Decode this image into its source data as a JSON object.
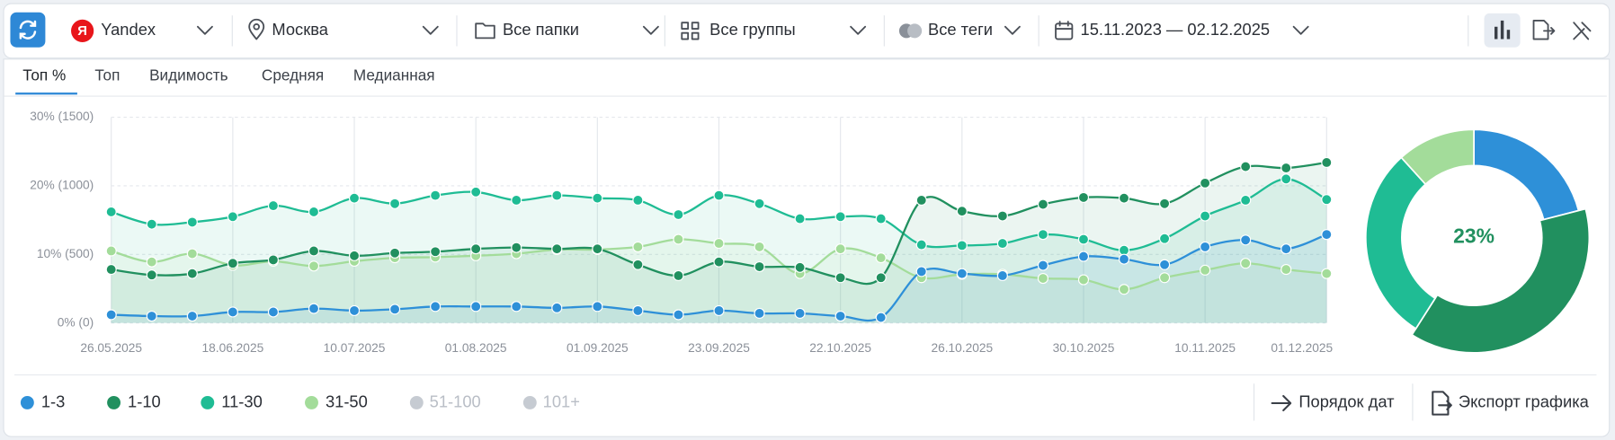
{
  "toolbar": {
    "engine_icon": "Я",
    "engine": "Yandex",
    "region": "Москва",
    "folders": "Все папки",
    "groups": "Все группы",
    "tags": "Все теги",
    "dates": "15.11.2023 — 02.12.2025"
  },
  "tabs": [
    "Топ %",
    "Топ",
    "Видимость",
    "Средняя",
    "Медианная"
  ],
  "legend_inactive": [
    "51-100",
    "101+"
  ],
  "buttons": [
    "Порядок дат",
    "Экспорт графика"
  ],
  "chart_data": [
    {
      "type": "line",
      "categories": [
        "26.05.2025",
        null,
        null,
        "18.06.2025",
        null,
        null,
        "10.07.2025",
        null,
        null,
        "01.08.2025",
        null,
        null,
        "01.09.2025",
        null,
        null,
        "23.09.2025",
        null,
        null,
        "22.10.2025",
        null,
        null,
        "26.10.2025",
        null,
        null,
        "30.10.2025",
        null,
        null,
        "10.11.2025",
        null,
        null,
        "01.12.2025"
      ],
      "ylim": [
        0,
        30
      ],
      "yticks": [
        {
          "value": 0,
          "label": "0% (0)"
        },
        {
          "value": 10,
          "label": "10% (500)"
        },
        {
          "value": 20,
          "label": "20% (1000)"
        },
        {
          "value": 30,
          "label": "30% (1500)"
        }
      ],
      "grid": true,
      "series": [
        {
          "name": "1-3",
          "color": "#2e90d8",
          "values": [
            1.2,
            1.0,
            1.0,
            1.6,
            1.6,
            2.1,
            1.8,
            2.0,
            2.4,
            2.4,
            2.4,
            2.2,
            2.4,
            1.8,
            1.2,
            1.8,
            1.4,
            1.4,
            1.0,
            0.8,
            7.5,
            7.2,
            6.9,
            8.4,
            9.7,
            9.3,
            8.5,
            11.1,
            12.1,
            10.8,
            12.9
          ]
        },
        {
          "name": "1-10",
          "color": "#21905f",
          "values": [
            7.8,
            7.0,
            7.2,
            8.7,
            9.2,
            10.5,
            9.8,
            10.2,
            10.4,
            10.8,
            11.0,
            10.8,
            10.8,
            8.5,
            6.9,
            8.9,
            8.2,
            8.1,
            6.6,
            6.6,
            17.9,
            16.3,
            15.6,
            17.3,
            18.3,
            18.2,
            17.4,
            20.4,
            22.8,
            22.6,
            23.4
          ]
        },
        {
          "name": "11-30",
          "color": "#1fbc94",
          "values": [
            16.2,
            14.4,
            14.7,
            15.5,
            17.1,
            16.2,
            18.2,
            17.4,
            18.6,
            19.1,
            17.9,
            18.6,
            18.2,
            17.9,
            15.8,
            18.6,
            17.4,
            15.2,
            15.5,
            15.2,
            11.4,
            11.3,
            11.6,
            12.9,
            12.2,
            10.6,
            12.3,
            15.6,
            17.9,
            21.0,
            18.0
          ]
        },
        {
          "name": "31-50",
          "color": "#a3dc9a",
          "values": [
            10.5,
            8.9,
            10.1,
            8.4,
            9.0,
            8.3,
            9.0,
            9.5,
            9.6,
            9.8,
            10.1,
            10.7,
            10.7,
            11.1,
            12.2,
            11.6,
            11.1,
            7.2,
            10.8,
            9.5,
            6.6,
            7.1,
            7.1,
            6.5,
            6.3,
            4.9,
            6.6,
            7.7,
            8.7,
            7.8,
            7.2
          ]
        }
      ]
    },
    {
      "type": "pie",
      "center_label": "23%",
      "highlight": 1,
      "categories": [
        "1-3",
        "1-10",
        "11-30",
        "31-50"
      ],
      "values": [
        12.9,
        23.4,
        18.0,
        7.2
      ],
      "colors": [
        "#2e90d8",
        "#21905f",
        "#1fbc94",
        "#a3dc9a"
      ]
    }
  ]
}
